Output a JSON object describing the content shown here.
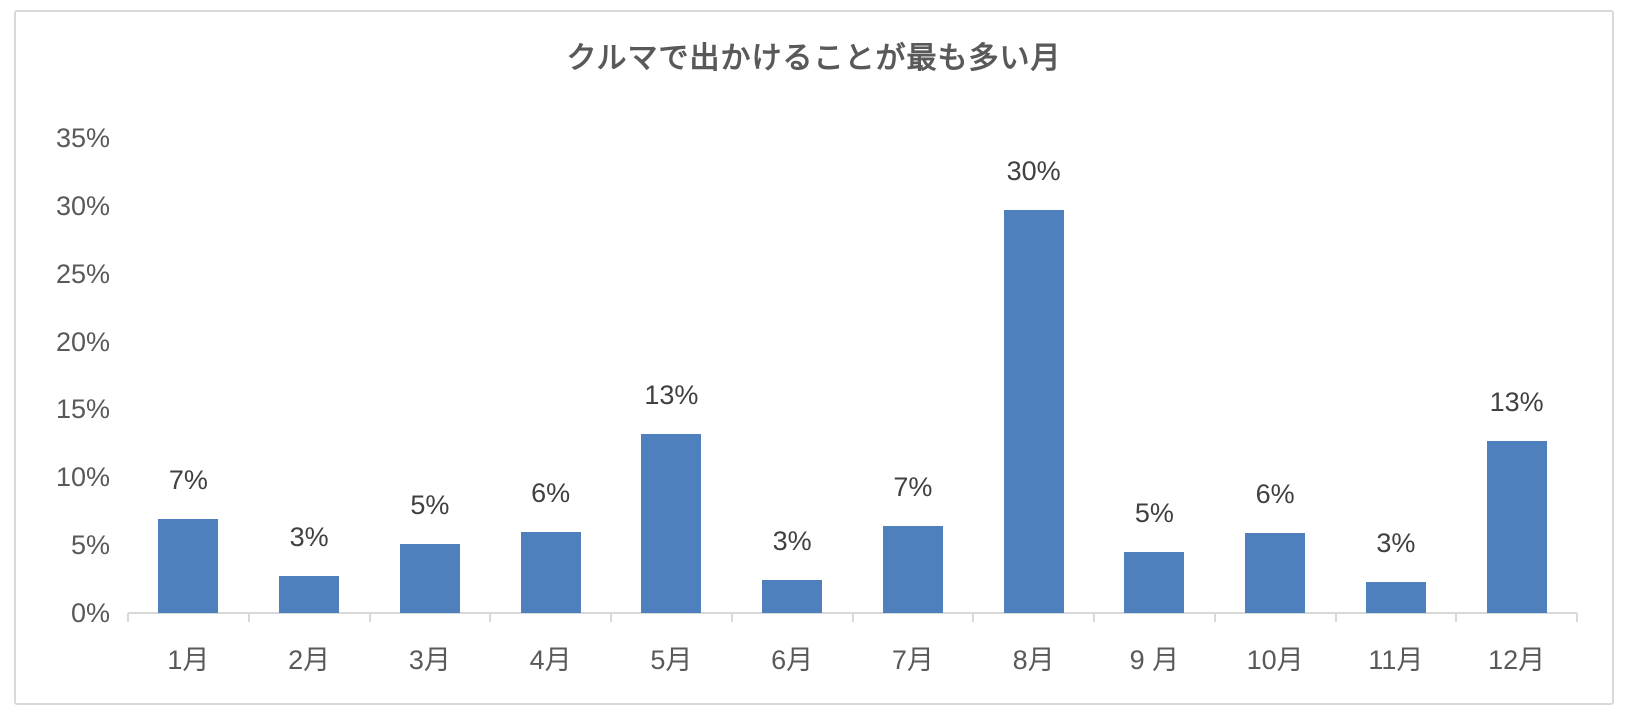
{
  "chart_data": {
    "type": "bar",
    "title": "クルマで出かけることが最も多い月",
    "categories": [
      "1月",
      "2月",
      "3月",
      "4月",
      "5月",
      "6月",
      "7月",
      "8月",
      "9 月",
      "10月",
      "11月",
      "12月"
    ],
    "values": [
      7,
      3,
      5,
      6,
      13,
      3,
      7,
      30,
      5,
      6,
      3,
      13
    ],
    "data_labels": [
      "7%",
      "3%",
      "5%",
      "6%",
      "13%",
      "3%",
      "7%",
      "30%",
      "5%",
      "6%",
      "3%",
      "13%"
    ],
    "bar_heights_pct": [
      6.9,
      2.7,
      5.1,
      6.0,
      13.2,
      2.4,
      6.4,
      29.7,
      4.5,
      5.9,
      2.3,
      12.7
    ],
    "y_ticks": [
      "0%",
      "5%",
      "10%",
      "15%",
      "20%",
      "25%",
      "30%",
      "35%"
    ],
    "ylim": [
      0,
      35
    ],
    "xlabel": "",
    "ylabel": "",
    "grid": false,
    "legend": "none",
    "colors": {
      "bar": "#4E80BD",
      "title": "#595959",
      "axis_labels": "#595959",
      "data_labels": "#404040",
      "axis_line": "#D9D9D9",
      "frame_border": "#D9D9D9"
    }
  }
}
